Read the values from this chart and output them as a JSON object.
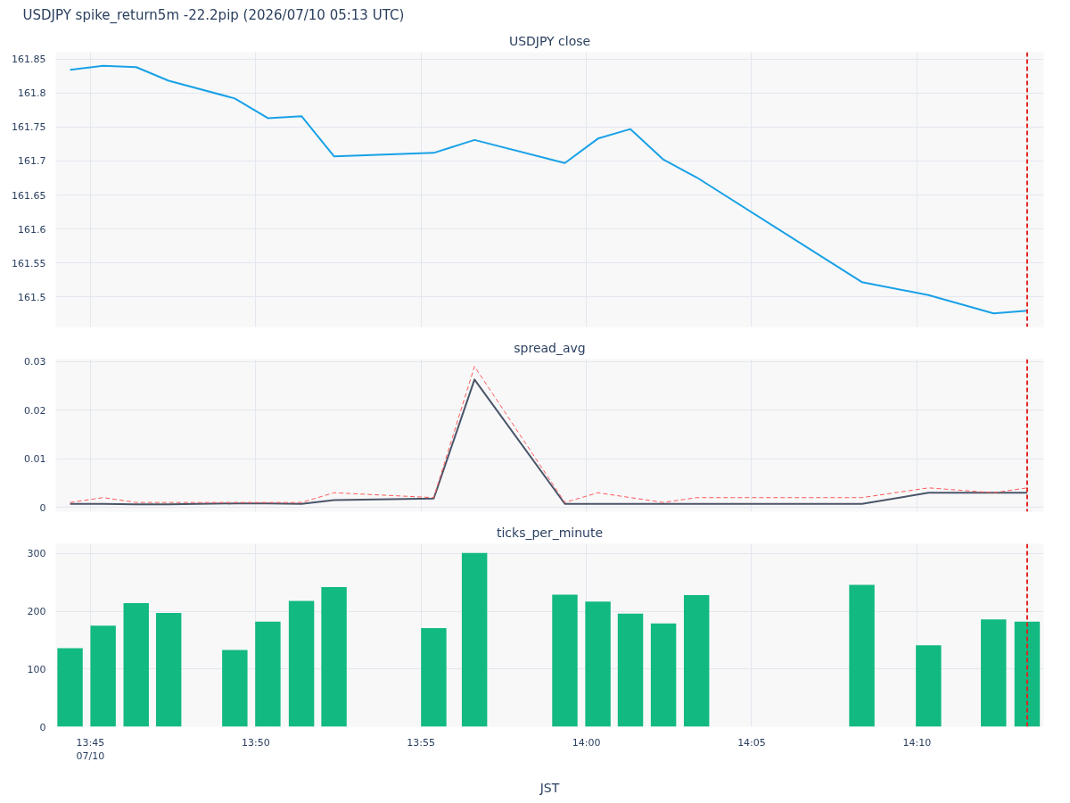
{
  "chart_data": [
    {
      "type": "line",
      "title": "USDJPY spike_return5m -22.2pip (2026/07/10 05:13 UTC)",
      "subtitle": "USDJPY close",
      "x": [
        "2026-07-10T13:44:23",
        "2026-07-10T13:45:23",
        "2026-07-10T13:46:23",
        "2026-07-10T13:47:22",
        "2026-07-10T13:49:22",
        "2026-07-10T13:50:22",
        "2026-07-10T13:51:23",
        "2026-07-10T13:52:22",
        "2026-07-10T13:55:23",
        "2026-07-10T13:56:37",
        "2026-07-10T13:59:21",
        "2026-07-10T14:00:21",
        "2026-07-10T14:01:20",
        "2026-07-10T14:02:20",
        "2026-07-10T14:03:20",
        "2026-07-10T14:08:20",
        "2026-07-10T14:10:21",
        "2026-07-10T14:12:19",
        "2026-07-10T14:13:20"
      ],
      "series": [
        {
          "color": "#19a1e6",
          "values": [
            161.834,
            161.84,
            161.838,
            161.818,
            161.792,
            161.763,
            161.766,
            161.707,
            161.712,
            161.731,
            161.697,
            161.733,
            161.747,
            161.702,
            161.676,
            161.522,
            161.503,
            161.476,
            161.48
          ]
        }
      ],
      "xlim": [
        "2026-07-10T13:43:57",
        "2026-07-10T14:13:50"
      ],
      "xticks": [
        {
          "value": "2026-07-10T13:45",
          "label": null
        },
        {
          "value": "2026-07-10T13:50",
          "label": null
        },
        {
          "value": "2026-07-10T13:55",
          "label": null
        },
        {
          "value": "2026-07-10T14:00",
          "label": null
        },
        {
          "value": "2026-07-10T14:05",
          "label": null
        },
        {
          "value": "2026-07-10T14:10",
          "label": null
        }
      ],
      "ylim": [
        161.456,
        161.86
      ],
      "yticks": [
        161.5,
        161.55,
        161.6,
        161.65,
        161.7,
        161.75,
        161.8,
        161.85
      ],
      "ref_lines": [
        {
          "axis": "x",
          "value": "2026-07-10T14:13:20",
          "color": "#e02424",
          "line_style": "dashed"
        }
      ],
      "grid": true,
      "tick_labels": "y",
      "line_style": "solid"
    },
    {
      "type": "line",
      "title": "spread_avg",
      "x": [
        "2026-07-10T13:44:23",
        "2026-07-10T13:45:23",
        "2026-07-10T13:46:23",
        "2026-07-10T13:47:22",
        "2026-07-10T13:49:22",
        "2026-07-10T13:50:22",
        "2026-07-10T13:51:23",
        "2026-07-10T13:52:22",
        "2026-07-10T13:55:23",
        "2026-07-10T13:56:37",
        "2026-07-10T13:59:21",
        "2026-07-10T14:00:21",
        "2026-07-10T14:01:20",
        "2026-07-10T14:02:20",
        "2026-07-10T14:03:20",
        "2026-07-10T14:08:20",
        "2026-07-10T14:10:21",
        "2026-07-10T14:12:19",
        "2026-07-10T14:13:20"
      ],
      "series": [
        {
          "color": "#4a5568",
          "line_style": "solid",
          "values": [
            0.0007,
            0.0007,
            0.0006,
            0.0006,
            0.0008,
            0.0008,
            0.0007,
            0.0015,
            0.0018,
            0.0263,
            0.0007,
            0.0007,
            0.0007,
            0.0007,
            0.0007,
            0.0007,
            0.003,
            0.003,
            0.003
          ]
        },
        {
          "color": "#ff5a5a",
          "line_style": "dashed",
          "values": [
            0.001,
            0.002,
            0.001,
            0.001,
            0.001,
            0.001,
            0.001,
            0.003,
            0.002,
            0.029,
            0.001,
            0.003,
            0.002,
            0.001,
            0.002,
            0.002,
            0.004,
            0.003,
            0.004
          ]
        }
      ],
      "xlim": [
        "2026-07-10T13:43:57",
        "2026-07-10T14:13:50"
      ],
      "xticks": [
        {
          "value": "2026-07-10T13:45",
          "label": null
        },
        {
          "value": "2026-07-10T13:50",
          "label": null
        },
        {
          "value": "2026-07-10T13:55",
          "label": null
        },
        {
          "value": "2026-07-10T14:00",
          "label": null
        },
        {
          "value": "2026-07-10T14:05",
          "label": null
        },
        {
          "value": "2026-07-10T14:10",
          "label": null
        }
      ],
      "ylim": [
        -0.0009,
        0.0305
      ],
      "yticks": [
        0,
        0.01,
        0.02,
        0.03
      ],
      "ref_lines": [
        {
          "axis": "x",
          "value": "2026-07-10T14:13:20",
          "color": "#e02424",
          "line_style": "dashed"
        }
      ],
      "grid": true,
      "tick_labels": "y"
    },
    {
      "type": "bar",
      "title": "ticks_per_minute",
      "xlabel": "JST",
      "x": [
        "2026-07-10T13:44:23",
        "2026-07-10T13:45:23",
        "2026-07-10T13:46:23",
        "2026-07-10T13:47:22",
        "2026-07-10T13:49:22",
        "2026-07-10T13:50:22",
        "2026-07-10T13:51:23",
        "2026-07-10T13:52:22",
        "2026-07-10T13:55:23",
        "2026-07-10T13:56:37",
        "2026-07-10T13:59:21",
        "2026-07-10T14:00:21",
        "2026-07-10T14:01:20",
        "2026-07-10T14:02:20",
        "2026-07-10T14:03:20",
        "2026-07-10T14:08:20",
        "2026-07-10T14:10:21",
        "2026-07-10T14:12:19",
        "2026-07-10T14:13:20"
      ],
      "series": [
        {
          "color": "#12b981",
          "values": [
            136,
            175,
            214,
            197,
            133,
            182,
            218,
            242,
            171,
            301,
            229,
            217,
            196,
            179,
            228,
            246,
            141,
            186,
            182
          ]
        }
      ],
      "xlim": [
        "2026-07-10T13:43:57",
        "2026-07-10T14:13:50"
      ],
      "xticks": [
        {
          "value": "2026-07-10T13:45",
          "label": "13:45\n07/10"
        },
        {
          "value": "2026-07-10T13:50",
          "label": "13:50"
        },
        {
          "value": "2026-07-10T13:55",
          "label": "13:55"
        },
        {
          "value": "2026-07-10T14:00",
          "label": "14:00"
        },
        {
          "value": "2026-07-10T14:05",
          "label": "14:05"
        },
        {
          "value": "2026-07-10T14:10",
          "label": "14:10"
        }
      ],
      "ylim": [
        0,
        317
      ],
      "yticks": [
        0,
        100,
        200,
        300
      ],
      "ref_lines": [
        {
          "axis": "x",
          "value": "2026-07-10T14:13:20",
          "color": "#e02424",
          "line_style": "dashed"
        }
      ],
      "grid": true
    }
  ]
}
